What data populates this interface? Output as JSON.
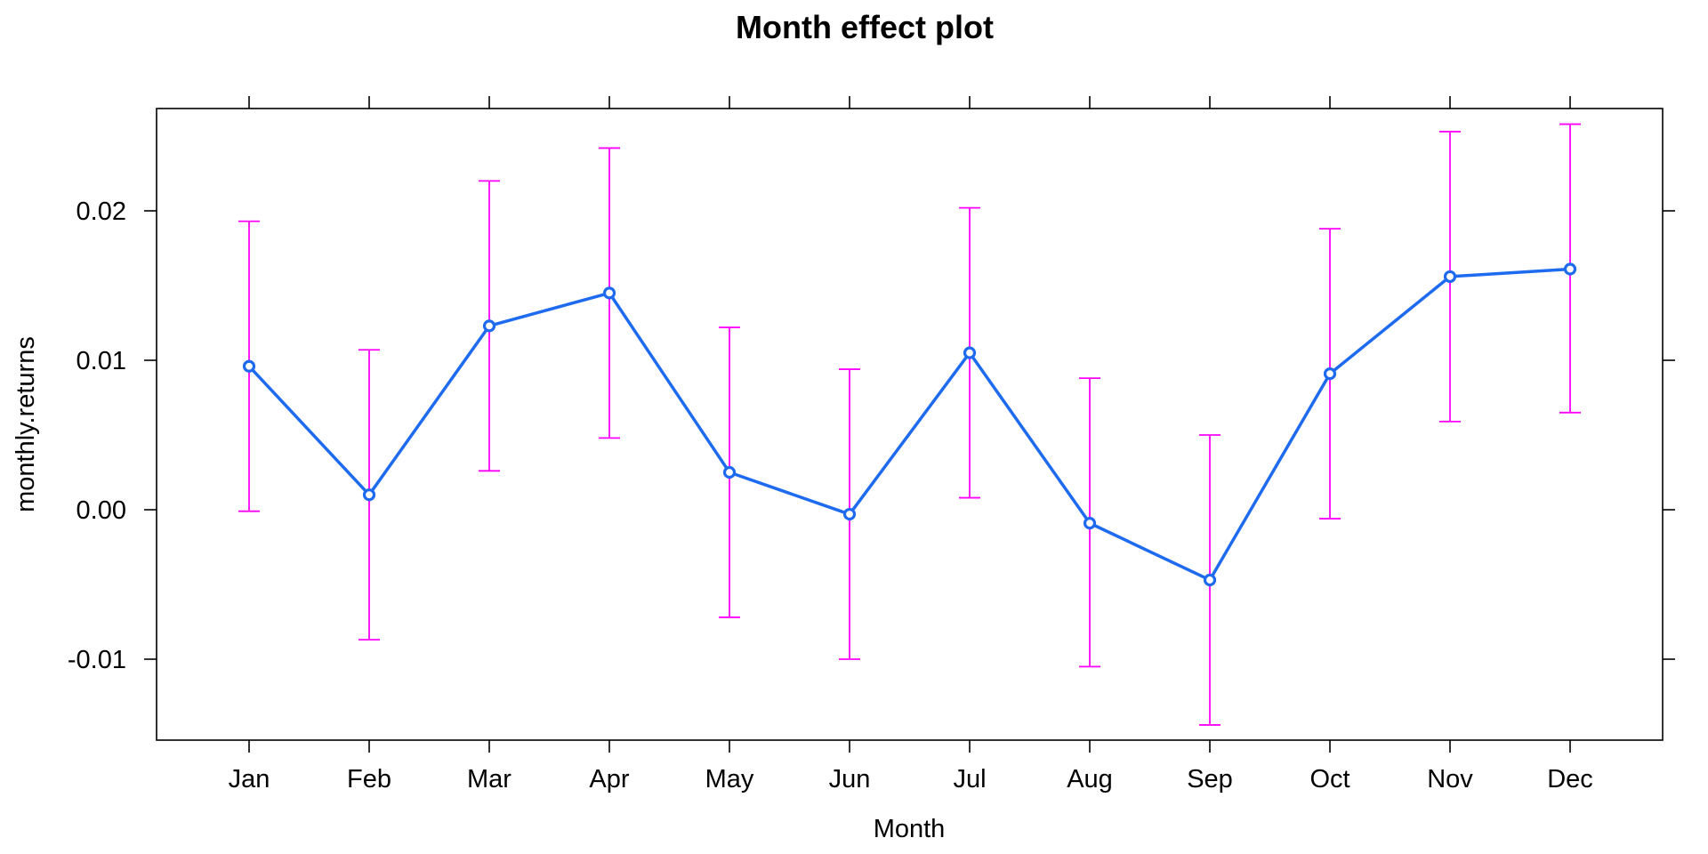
{
  "chart_data": {
    "type": "line",
    "title": "Month effect plot",
    "xlabel": "Month",
    "ylabel": "monthly.returns",
    "categories": [
      "Jan",
      "Feb",
      "Mar",
      "Apr",
      "May",
      "Jun",
      "Jul",
      "Aug",
      "Sep",
      "Oct",
      "Nov",
      "Dec"
    ],
    "y_ticks": [
      "-0.01",
      "0.00",
      "0.01",
      "0.02"
    ],
    "y_tick_values": [
      -0.01,
      0.0,
      0.01,
      0.02
    ],
    "ylim": [
      -0.0155,
      0.0268
    ],
    "grid": false,
    "series": [
      {
        "values": [
          0.0096,
          0.001,
          0.0123,
          0.0145,
          0.0025,
          -0.0003,
          0.0105,
          -0.0009,
          -0.0047,
          0.0091,
          0.0156,
          0.0161
        ],
        "lower": [
          -0.0001,
          -0.0087,
          0.0026,
          0.0048,
          -0.0072,
          -0.01,
          0.0008,
          -0.0105,
          -0.0144,
          -0.0006,
          0.0059,
          0.0065
        ],
        "upper": [
          0.0193,
          0.0107,
          0.022,
          0.0242,
          0.0122,
          0.0094,
          0.0202,
          0.0088,
          0.005,
          0.0188,
          0.0253,
          0.0258
        ]
      }
    ],
    "colors": {
      "line": "#1E6BF0",
      "error_bar": "#FF00FF",
      "axis": "#000000"
    }
  }
}
